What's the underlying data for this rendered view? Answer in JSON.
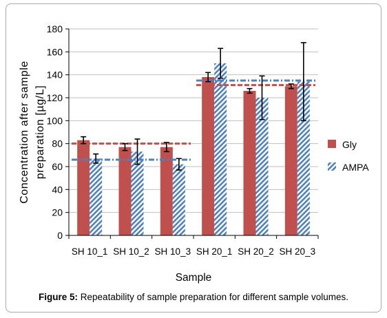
{
  "caption": {
    "label": "Figure 5:",
    "text": "Repeatability of sample preparation for different sample volumes."
  },
  "chart_data": {
    "type": "bar",
    "title": "",
    "xlabel": "Sample",
    "ylabel": "Concentration after sample preparation [µg/L]",
    "ylim": [
      0,
      180
    ],
    "yticks": [
      0,
      20,
      40,
      60,
      80,
      100,
      120,
      140,
      160,
      180
    ],
    "grid": true,
    "legend_position": "right",
    "categories": [
      "SH 10_1",
      "SH 10_2",
      "SH 10_3",
      "SH 20_1",
      "SH 20_2",
      "SH 20_3"
    ],
    "series": [
      {
        "name": "Gly",
        "color": "#c0504d",
        "pattern": "solid",
        "values": [
          83,
          77,
          77,
          138,
          126,
          130
        ],
        "error": [
          3,
          3,
          4,
          4,
          2,
          2
        ]
      },
      {
        "name": "AMPA",
        "color": "#4f81bd",
        "pattern": "diagonal-hatch",
        "values": [
          67,
          73,
          62,
          150,
          120,
          134
        ],
        "error": [
          4,
          11,
          5,
          13,
          19,
          34
        ]
      }
    ],
    "reference_lines": [
      {
        "series": "Gly",
        "value": 80,
        "segment": [
          0,
          2
        ],
        "color": "#c0504d"
      },
      {
        "series": "Gly",
        "value": 131,
        "segment": [
          3,
          5
        ],
        "color": "#c0504d"
      },
      {
        "series": "AMPA",
        "value": 66,
        "segment": [
          0,
          2
        ],
        "color": "#4f81bd"
      },
      {
        "series": "AMPA",
        "value": 135,
        "segment": [
          3,
          5
        ],
        "color": "#4f81bd"
      }
    ]
  }
}
